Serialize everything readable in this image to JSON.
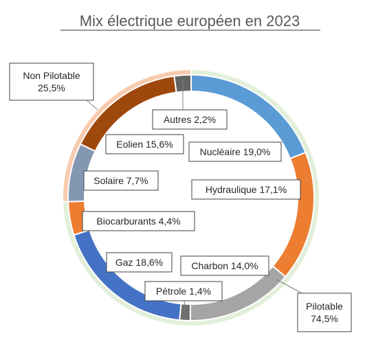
{
  "chart_data": {
    "type": "pie",
    "subtype": "nested-donut",
    "title": "Mix électrique européen en 2023",
    "inner_ring": {
      "categories": [
        "Nucléaire",
        "Hydraulique",
        "Charbon",
        "Pétrole",
        "Gaz",
        "Biocarburants",
        "Solaire",
        "Eolien",
        "Autres"
      ],
      "values": [
        19.0,
        17.1,
        14.0,
        1.4,
        18.6,
        4.4,
        7.7,
        15.6,
        2.2
      ],
      "labels": [
        "Nucléaire 19,0%",
        "Hydraulique 17,1%",
        "Charbon 14,0%",
        "Pétrole 1,4%",
        "Gaz 18,6%",
        "Biocarburants 4,4%",
        "Solaire 7,7%",
        "Eolien 15,6%",
        "Autres 2,2%"
      ],
      "colors": [
        "#5b9bd5",
        "#ed7d31",
        "#a5a5a5",
        "#6f6f6f",
        "#4472c4",
        "#ed7d31",
        "#8497b0",
        "#9e480e",
        "#636363"
      ]
    },
    "outer_ring": {
      "categories": [
        "Pilotable",
        "Non Pilotable"
      ],
      "values": [
        74.5,
        25.5
      ],
      "labels_line1": [
        "Pilotable",
        "Non Pilotable"
      ],
      "labels_line2": [
        "74,5%",
        "25,5%"
      ],
      "colors": [
        "#e2efda",
        "#f8cbad"
      ]
    },
    "legend": "none"
  }
}
